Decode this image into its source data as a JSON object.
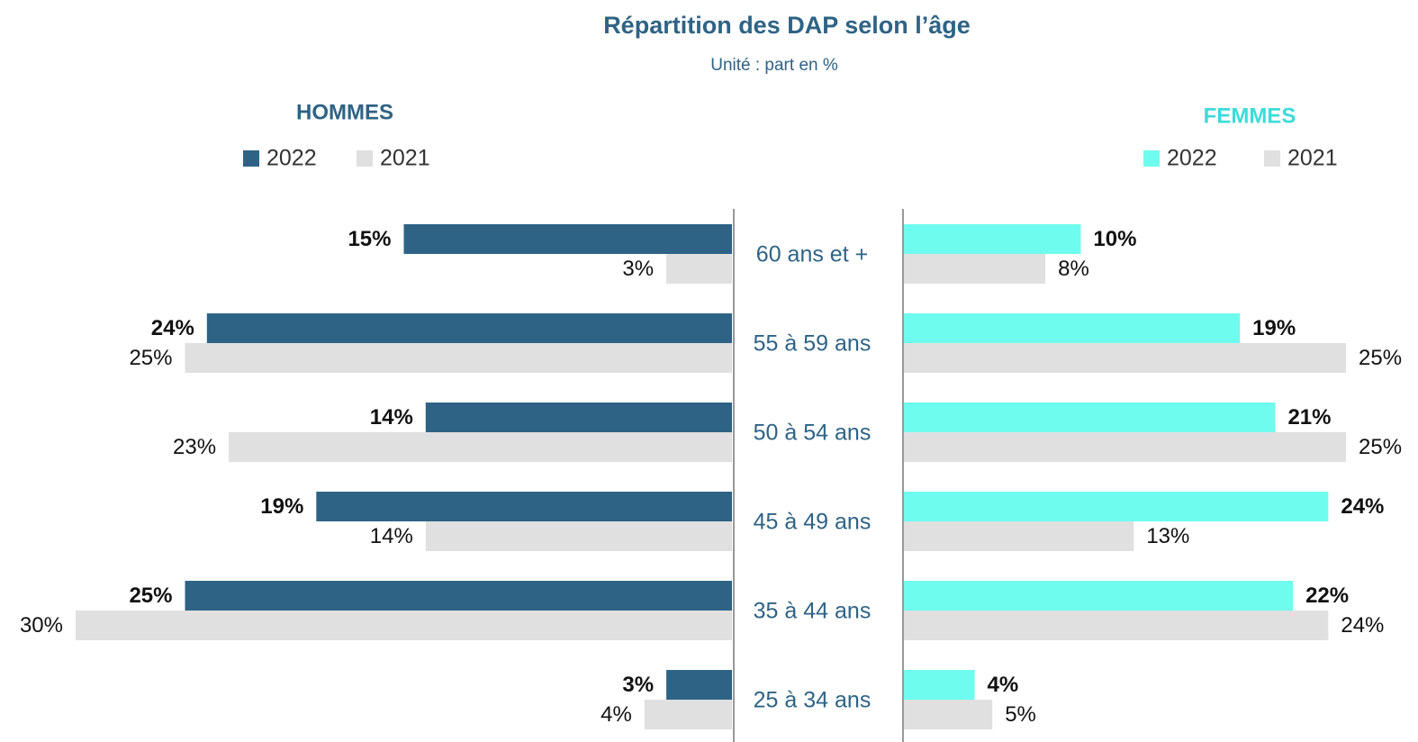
{
  "chart_data": {
    "type": "bar",
    "title": "Répartition des DAP selon l’âge",
    "subtitle": "Unité : part en %",
    "categories": [
      "60 ans et +",
      "55 à 59 ans",
      "50 à 54 ans",
      "45 à 49 ans",
      "35 à 44 ans",
      "25 à 34 ans"
    ],
    "panels": [
      {
        "title": "HOMMES",
        "color": "#2e6385",
        "series": [
          {
            "name": "2022",
            "color": "#2e6385",
            "values": [
              15,
              24,
              14,
              19,
              25,
              3
            ],
            "value_labels": [
              "15%",
              "24%",
              "14%",
              "19%",
              "25%",
              "3%"
            ]
          },
          {
            "name": "2021",
            "color": "#e0e0e0",
            "values": [
              3,
              25,
              23,
              14,
              30,
              4
            ],
            "value_labels": [
              "3%",
              "25%",
              "23%",
              "14%",
              "30%",
              "4%"
            ]
          }
        ]
      },
      {
        "title": "FEMMES",
        "color": "#3ddbd9",
        "series": [
          {
            "name": "2022",
            "color": "#6efcee",
            "values": [
              10,
              19,
              21,
              24,
              22,
              4
            ],
            "value_labels": [
              "10%",
              "19%",
              "21%",
              "24%",
              "22%",
              "4%"
            ]
          },
          {
            "name": "2021",
            "color": "#e0e0e0",
            "values": [
              8,
              25,
              25,
              13,
              24,
              5
            ],
            "value_labels": [
              "8%",
              "25%",
              "25%",
              "13%",
              "24%",
              "5%"
            ]
          }
        ]
      }
    ]
  }
}
